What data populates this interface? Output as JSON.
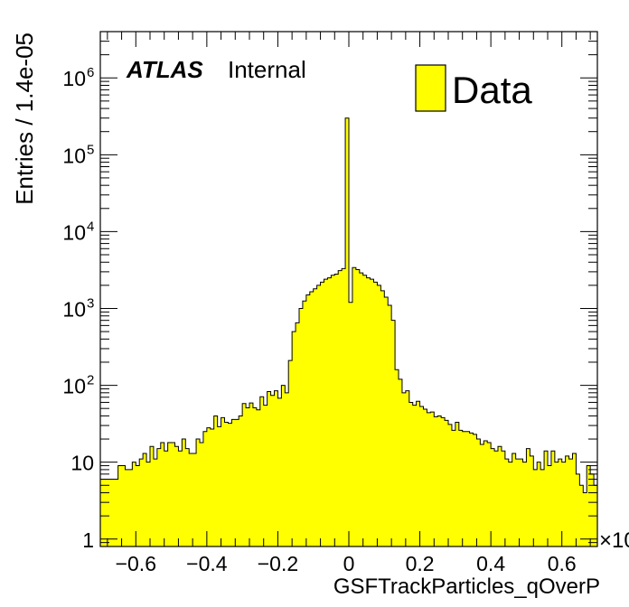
{
  "chart_data": {
    "type": "histogram",
    "xlabel": "GSFTrackParticles_qOverP",
    "ylabel": "Entries / 1.4e-05",
    "x_multiplier": "×10",
    "xlim": [
      -0.7,
      0.7
    ],
    "ylim": [
      0.8,
      4000000
    ],
    "y_scale": "log",
    "x_ticks": [
      -0.6,
      -0.4,
      -0.2,
      0,
      0.2,
      0.4,
      0.6
    ],
    "x_tick_labels": [
      "−0.6",
      "−0.4",
      "−0.2",
      "0",
      "0.2",
      "0.4",
      "0.6"
    ],
    "y_ticks": [
      {
        "value": 1,
        "base": "1",
        "exp": ""
      },
      {
        "value": 10,
        "base": "10",
        "exp": ""
      },
      {
        "value": 100,
        "base": "10",
        "exp": "2"
      },
      {
        "value": 1000,
        "base": "10",
        "exp": "3"
      },
      {
        "value": 10000,
        "base": "10",
        "exp": "4"
      },
      {
        "value": 100000,
        "base": "10",
        "exp": "5"
      },
      {
        "value": 1000000,
        "base": "10",
        "exp": "6"
      }
    ],
    "bin_edges": [
      -0.7,
      0.7
    ],
    "counts": [
      6,
      6,
      6,
      6,
      6,
      9,
      9,
      8,
      8,
      10,
      9,
      11,
      13,
      10,
      16,
      11,
      15,
      18,
      14,
      18,
      18,
      16,
      14,
      20,
      15,
      13,
      13,
      20,
      18,
      25,
      28,
      27,
      40,
      29,
      38,
      33,
      32,
      36,
      36,
      40,
      58,
      51,
      59,
      51,
      48,
      71,
      55,
      83,
      74,
      85,
      68,
      100,
      80,
      210,
      500,
      650,
      1000,
      1250,
      1500,
      1650,
      1800,
      2000,
      2200,
      2400,
      2500,
      2700,
      2800,
      3100,
      3300,
      300000,
      1200,
      3400,
      3200,
      2900,
      2700,
      2500,
      2400,
      2200,
      2000,
      1700,
      1400,
      1100,
      700,
      160,
      120,
      80,
      85,
      60,
      55,
      62,
      53,
      49,
      44,
      45,
      39,
      40,
      38,
      35,
      31,
      26,
      33,
      26,
      25,
      25,
      24,
      23,
      20,
      17,
      19,
      18,
      15,
      14,
      16,
      14,
      11,
      10,
      13,
      11,
      11,
      10,
      15,
      12,
      8,
      10,
      8,
      14,
      9,
      14,
      10,
      11,
      10,
      12,
      11,
      13,
      7,
      5,
      4,
      9,
      7,
      5
    ]
  },
  "legend": {
    "label": "Data",
    "color": "#ffff00"
  },
  "watermark": {
    "brand": "ATLAS",
    "status": "Internal"
  },
  "colors": {
    "fill": "#ffff00",
    "line": "#000000",
    "background": "#ffffff"
  }
}
